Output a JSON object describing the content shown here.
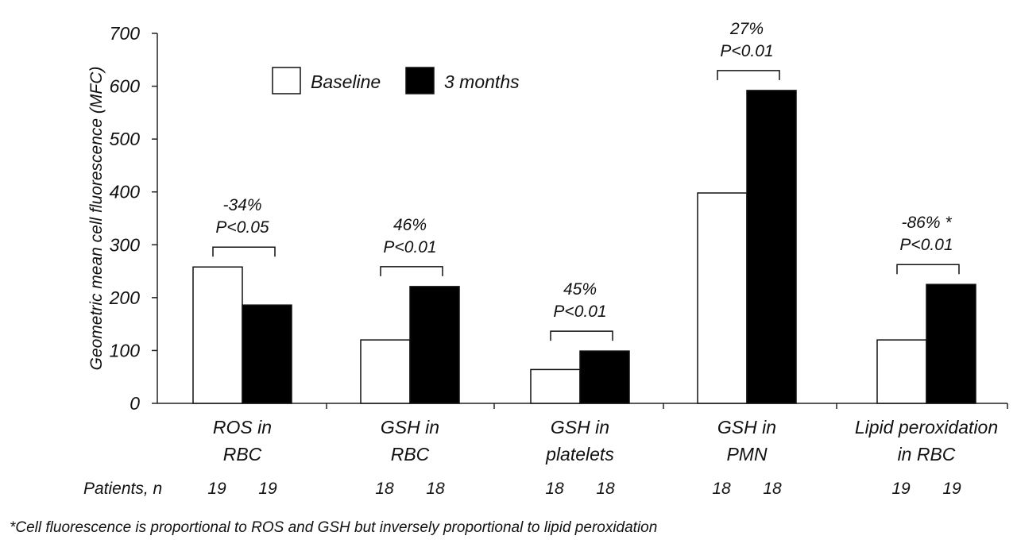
{
  "chart_data": {
    "type": "bar",
    "title": "",
    "xlabel": "",
    "ylabel": "Geometric mean cell fluorescence (MFC)",
    "ylim": [
      0,
      700
    ],
    "yticks": [
      0,
      100,
      200,
      300,
      400,
      500,
      600,
      700
    ],
    "categories": [
      {
        "line1": "ROS in",
        "line2": "RBC"
      },
      {
        "line1": "GSH in",
        "line2": "RBC"
      },
      {
        "line1": "GSH in",
        "line2": "platelets"
      },
      {
        "line1": "GSH in",
        "line2": "PMN"
      },
      {
        "line1": "Lipid peroxidation",
        "line2": "in RBC"
      }
    ],
    "series": [
      {
        "name": "Baseline",
        "color": "#ffffff",
        "values": [
          258,
          120,
          64,
          398,
          120
        ]
      },
      {
        "name": "3 months",
        "color": "#000000",
        "values": [
          186,
          221,
          99,
          592,
          225
        ]
      }
    ],
    "annotations": [
      {
        "change": "-34%",
        "p": "P<0.05"
      },
      {
        "change": "46%",
        "p": "P<0.01"
      },
      {
        "change": "45%",
        "p": "P<0.01"
      },
      {
        "change": "27%",
        "p": "P<0.01"
      },
      {
        "change": "-86% *",
        "p": "P<0.01"
      }
    ],
    "patients_label": "Patients, n",
    "patients": [
      [
        "19",
        "19"
      ],
      [
        "18",
        "18"
      ],
      [
        "18",
        "18"
      ],
      [
        "18",
        "18"
      ],
      [
        "19",
        "19"
      ]
    ],
    "legend_position": "top-left"
  },
  "footnote": "*Cell fluorescence is proportional to ROS and GSH but inversely proportional to lipid peroxidation"
}
